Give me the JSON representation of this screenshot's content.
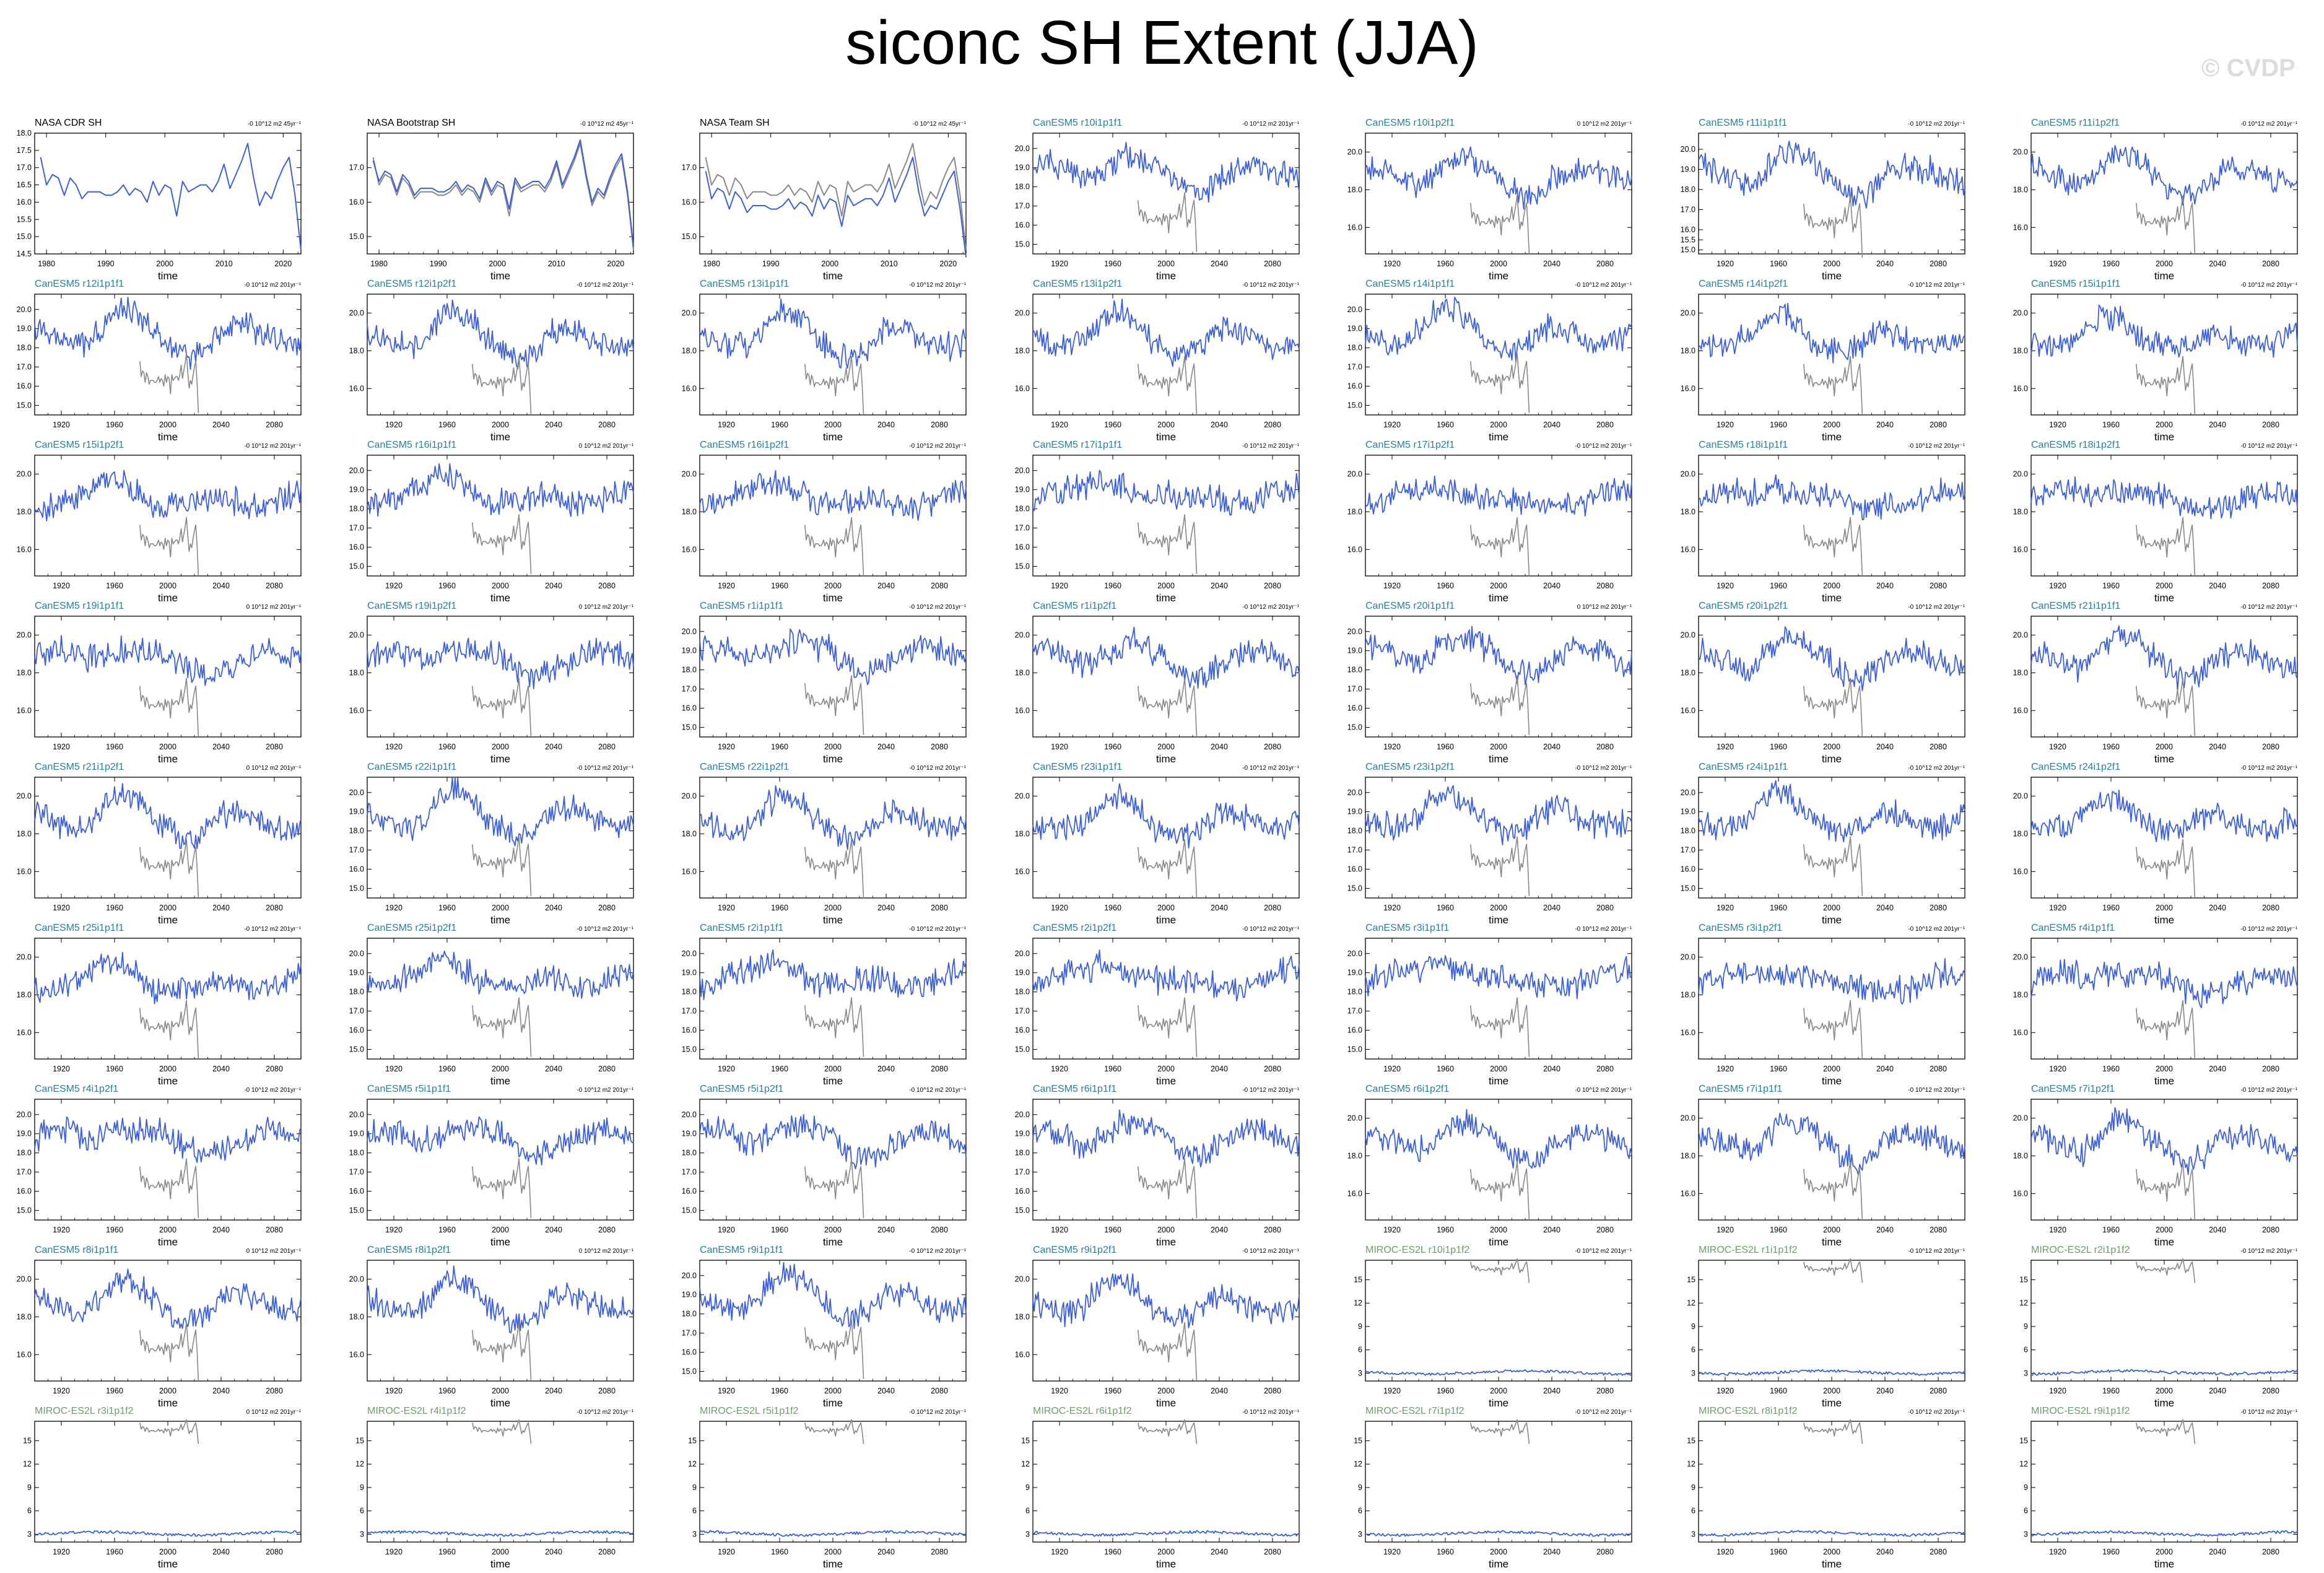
{
  "title": "siconc SH Extent (JJA)",
  "watermark": "© CVDP",
  "colors": {
    "obs_title": "#000000",
    "cesm_title": "#2a7f9a",
    "miroc_title": "#6e9c6e",
    "series_line": "#3a5fd9",
    "obs_overlay_line": "#888888",
    "axis": "#000000"
  },
  "chart_data": [
    {
      "title": "NASA CDR SH",
      "trend": "-0 10^12 m2 45yr⁻¹",
      "type": "line",
      "xlabel": "time",
      "xlim": [
        1978,
        2023
      ],
      "xticks": [
        1980,
        1990,
        2000,
        2010,
        2020
      ],
      "ylim": [
        14.5,
        18.0
      ],
      "yticks": [
        "18.0",
        "17.5",
        "17.0",
        "16.5",
        "16.0",
        "15.5",
        "15.0",
        "14.5"
      ],
      "series": [
        {
          "role": "observed",
          "x": [
            1979,
            1980,
            1981,
            1982,
            1983,
            1984,
            1985,
            1986,
            1987,
            1988,
            1989,
            1990,
            1991,
            1992,
            1993,
            1994,
            1995,
            1996,
            1997,
            1998,
            1999,
            2000,
            2001,
            2002,
            2003,
            2004,
            2005,
            2006,
            2007,
            2008,
            2009,
            2010,
            2011,
            2012,
            2013,
            2014,
            2015,
            2016,
            2017,
            2018,
            2019,
            2020,
            2021,
            2022,
            2023
          ],
          "y": [
            17.3,
            16.5,
            16.8,
            16.7,
            16.2,
            16.7,
            16.5,
            16.1,
            16.3,
            16.3,
            16.3,
            16.2,
            16.2,
            16.3,
            16.5,
            16.2,
            16.4,
            16.3,
            16.0,
            16.6,
            16.2,
            16.5,
            16.4,
            15.6,
            16.6,
            16.3,
            16.4,
            16.5,
            16.5,
            16.3,
            16.6,
            17.1,
            16.4,
            16.8,
            17.2,
            17.7,
            16.7,
            15.9,
            16.3,
            16.1,
            16.6,
            17.0,
            17.3,
            16.2,
            14.6
          ]
        }
      ]
    },
    {
      "title": "NASA Bootstrap SH",
      "trend": "-0 10^12 m2 45yr⁻¹",
      "type": "line",
      "xlabel": "time",
      "xlim": [
        1978,
        2023
      ],
      "xticks": [
        1980,
        1990,
        2000,
        2010,
        2020
      ],
      "ylim": [
        14.5,
        18.0
      ],
      "yticks": [
        "17.0",
        "16.0",
        "15.0"
      ],
      "series": [
        {
          "role": "observed",
          "x": [
            1979,
            1980,
            1981,
            1982,
            1983,
            1984,
            1985,
            1986,
            1987,
            1988,
            1989,
            1990,
            1991,
            1992,
            1993,
            1994,
            1995,
            1996,
            1997,
            1998,
            1999,
            2000,
            2001,
            2002,
            2003,
            2004,
            2005,
            2006,
            2007,
            2008,
            2009,
            2010,
            2011,
            2012,
            2013,
            2014,
            2015,
            2016,
            2017,
            2018,
            2019,
            2020,
            2021,
            2022,
            2023
          ],
          "y": [
            17.2,
            16.6,
            16.9,
            16.8,
            16.3,
            16.8,
            16.6,
            16.2,
            16.4,
            16.4,
            16.4,
            16.3,
            16.3,
            16.4,
            16.6,
            16.3,
            16.5,
            16.4,
            16.1,
            16.7,
            16.3,
            16.6,
            16.5,
            15.8,
            16.7,
            16.4,
            16.5,
            16.6,
            16.6,
            16.4,
            16.7,
            17.2,
            16.5,
            16.9,
            17.3,
            17.8,
            16.8,
            16.0,
            16.4,
            16.2,
            16.7,
            17.1,
            17.4,
            16.3,
            14.7
          ]
        },
        {
          "role": "reference",
          "x": [
            1979,
            1980,
            1981,
            1982,
            1983,
            1984,
            1985,
            1986,
            1987,
            1988,
            1989,
            1990,
            1991,
            1992,
            1993,
            1994,
            1995,
            1996,
            1997,
            1998,
            1999,
            2000,
            2001,
            2002,
            2003,
            2004,
            2005,
            2006,
            2007,
            2008,
            2009,
            2010,
            2011,
            2012,
            2013,
            2014,
            2015,
            2016,
            2017,
            2018,
            2019,
            2020,
            2021,
            2022,
            2023
          ],
          "y": [
            17.3,
            16.5,
            16.8,
            16.7,
            16.2,
            16.7,
            16.5,
            16.1,
            16.3,
            16.3,
            16.3,
            16.2,
            16.2,
            16.3,
            16.5,
            16.2,
            16.4,
            16.3,
            16.0,
            16.6,
            16.2,
            16.5,
            16.4,
            15.6,
            16.6,
            16.3,
            16.4,
            16.5,
            16.5,
            16.3,
            16.6,
            17.1,
            16.4,
            16.8,
            17.2,
            17.7,
            16.7,
            15.9,
            16.3,
            16.1,
            16.6,
            17.0,
            17.3,
            16.2,
            14.6
          ]
        }
      ]
    },
    {
      "title": "NASA Team SH",
      "trend": "-0 10^12 m2 45yr⁻¹",
      "type": "line",
      "xlabel": "time",
      "xlim": [
        1978,
        2023
      ],
      "xticks": [
        1980,
        1990,
        2000,
        2010,
        2020
      ],
      "ylim": [
        14.5,
        18.0
      ],
      "yticks": [
        "17.0",
        "16.0",
        "15.0"
      ],
      "series": [
        {
          "role": "observed",
          "x": [
            1979,
            1980,
            1981,
            1982,
            1983,
            1984,
            1985,
            1986,
            1987,
            1988,
            1989,
            1990,
            1991,
            1992,
            1993,
            1994,
            1995,
            1996,
            1997,
            1998,
            1999,
            2000,
            2001,
            2002,
            2003,
            2004,
            2005,
            2006,
            2007,
            2008,
            2009,
            2010,
            2011,
            2012,
            2013,
            2014,
            2015,
            2016,
            2017,
            2018,
            2019,
            2020,
            2021,
            2022,
            2023
          ],
          "y": [
            16.9,
            16.1,
            16.4,
            16.3,
            15.8,
            16.3,
            16.1,
            15.7,
            15.9,
            15.9,
            15.9,
            15.8,
            15.8,
            15.9,
            16.1,
            15.8,
            16.0,
            15.9,
            15.6,
            16.2,
            15.8,
            16.1,
            16.0,
            15.3,
            16.2,
            15.9,
            16.0,
            16.1,
            16.1,
            15.9,
            16.2,
            16.7,
            16.0,
            16.4,
            16.8,
            17.3,
            16.3,
            15.6,
            15.9,
            15.8,
            16.2,
            16.6,
            16.9,
            15.8,
            14.4
          ]
        },
        {
          "role": "reference",
          "x": [
            1979,
            1980,
            1981,
            1982,
            1983,
            1984,
            1985,
            1986,
            1987,
            1988,
            1989,
            1990,
            1991,
            1992,
            1993,
            1994,
            1995,
            1996,
            1997,
            1998,
            1999,
            2000,
            2001,
            2002,
            2003,
            2004,
            2005,
            2006,
            2007,
            2008,
            2009,
            2010,
            2011,
            2012,
            2013,
            2014,
            2015,
            2016,
            2017,
            2018,
            2019,
            2020,
            2021,
            2022,
            2023
          ],
          "y": [
            17.3,
            16.5,
            16.8,
            16.7,
            16.2,
            16.7,
            16.5,
            16.1,
            16.3,
            16.3,
            16.3,
            16.2,
            16.2,
            16.3,
            16.5,
            16.2,
            16.4,
            16.3,
            16.0,
            16.6,
            16.2,
            16.5,
            16.4,
            15.6,
            16.6,
            16.3,
            16.4,
            16.5,
            16.5,
            16.3,
            16.6,
            17.1,
            16.4,
            16.8,
            17.2,
            17.7,
            16.7,
            15.9,
            16.3,
            16.1,
            16.6,
            17.0,
            17.3,
            16.2,
            14.6
          ]
        }
      ]
    }
  ],
  "model_panels": {
    "xlim": [
      1900,
      2100
    ],
    "xticks": [
      1920,
      1960,
      2000,
      2040,
      2080
    ],
    "xlabel": "time",
    "overlay": {
      "x_start": 1979,
      "x_end": 2023,
      "y": [
        17.3,
        16.5,
        16.8,
        16.7,
        16.2,
        16.7,
        16.5,
        16.1,
        16.3,
        16.3,
        16.3,
        16.2,
        16.2,
        16.3,
        16.5,
        16.2,
        16.4,
        16.3,
        16.0,
        16.6,
        16.2,
        16.5,
        16.4,
        15.6,
        16.6,
        16.3,
        16.4,
        16.5,
        16.5,
        16.3,
        16.6,
        17.1,
        16.4,
        16.8,
        17.2,
        17.7,
        16.7,
        15.9,
        16.3,
        16.1,
        16.6,
        17.0,
        17.3,
        16.2,
        14.6
      ]
    },
    "cesm_yticks_a": [
      "20.0",
      "18.0",
      "16.0"
    ],
    "cesm_yticks_b": [
      "20.0",
      "19.0",
      "18.0",
      "17.0",
      "16.0",
      "15.0"
    ],
    "cesm_yticks_c": [
      "20.0",
      "19.0",
      "18.0",
      "17.0",
      "16.0",
      "15.5",
      "15.0"
    ],
    "miroc_yticks": [
      "15",
      "12",
      "9",
      "6",
      "3"
    ],
    "panels": [
      {
        "title": "CanESM5 r10i1p1f1",
        "trend": "-0 10^12 m2 201yr⁻¹",
        "family": "cesm",
        "yt": "b"
      },
      {
        "title": "CanESM5 r10i1p2f1",
        "trend": "0 10^12 m2 201yr⁻¹",
        "family": "cesm",
        "yt": "a"
      },
      {
        "title": "CanESM5 r11i1p1f1",
        "trend": "-0 10^12 m2 201yr⁻¹",
        "family": "cesm",
        "yt": "c"
      },
      {
        "title": "CanESM5 r11i1p2f1",
        "trend": "-0 10^12 m2 201yr⁻¹",
        "family": "cesm",
        "yt": "a"
      },
      {
        "title": "CanESM5 r12i1p1f1",
        "trend": "-0 10^12 m2 201yr⁻¹",
        "family": "cesm",
        "yt": "b"
      },
      {
        "title": "CanESM5 r12i1p2f1",
        "trend": "-0 10^12 m2 201yr⁻¹",
        "family": "cesm",
        "yt": "a"
      },
      {
        "title": "CanESM5 r13i1p1f1",
        "trend": "-0 10^12 m2 201yr⁻¹",
        "family": "cesm",
        "yt": "a"
      },
      {
        "title": "CanESM5 r13i1p2f1",
        "trend": "-0 10^12 m2 201yr⁻¹",
        "family": "cesm",
        "yt": "a"
      },
      {
        "title": "CanESM5 r14i1p1f1",
        "trend": "-0 10^12 m2 201yr⁻¹",
        "family": "cesm",
        "yt": "b"
      },
      {
        "title": "CanESM5 r14i1p2f1",
        "trend": "-0 10^12 m2 201yr⁻¹",
        "family": "cesm",
        "yt": "a"
      },
      {
        "title": "CanESM5 r15i1p1f1",
        "trend": "-0 10^12 m2 201yr⁻¹",
        "family": "cesm",
        "yt": "a"
      },
      {
        "title": "CanESM5 r15i1p2f1",
        "trend": "-0 10^12 m2 201yr⁻¹",
        "family": "cesm",
        "yt": "a"
      },
      {
        "title": "CanESM5 r16i1p1f1",
        "trend": "0 10^12 m2 201yr⁻¹",
        "family": "cesm",
        "yt": "b"
      },
      {
        "title": "CanESM5 r16i1p2f1",
        "trend": "-0 10^12 m2 201yr⁻¹",
        "family": "cesm",
        "yt": "a"
      },
      {
        "title": "CanESM5 r17i1p1f1",
        "trend": "-0 10^12 m2 201yr⁻¹",
        "family": "cesm",
        "yt": "b"
      },
      {
        "title": "CanESM5 r17i1p2f1",
        "trend": "-0 10^12 m2 201yr⁻¹",
        "family": "cesm",
        "yt": "a"
      },
      {
        "title": "CanESM5 r18i1p1f1",
        "trend": "-0 10^12 m2 201yr⁻¹",
        "family": "cesm",
        "yt": "a"
      },
      {
        "title": "CanESM5 r18i1p2f1",
        "trend": "-0 10^12 m2 201yr⁻¹",
        "family": "cesm",
        "yt": "a"
      },
      {
        "title": "CanESM5 r19i1p1f1",
        "trend": "0 10^12 m2 201yr⁻¹",
        "family": "cesm",
        "yt": "a"
      },
      {
        "title": "CanESM5 r19i1p2f1",
        "trend": "0 10^12 m2 201yr⁻¹",
        "family": "cesm",
        "yt": "a"
      },
      {
        "title": "CanESM5 r1i1p1f1",
        "trend": "-0 10^12 m2 201yr⁻¹",
        "family": "cesm",
        "yt": "b"
      },
      {
        "title": "CanESM5 r1i1p2f1",
        "trend": "-0 10^12 m2 201yr⁻¹",
        "family": "cesm",
        "yt": "a"
      },
      {
        "title": "CanESM5 r20i1p1f1",
        "trend": "0 10^12 m2 201yr⁻¹",
        "family": "cesm",
        "yt": "b"
      },
      {
        "title": "CanESM5 r20i1p2f1",
        "trend": "-0 10^12 m2 201yr⁻¹",
        "family": "cesm",
        "yt": "a"
      },
      {
        "title": "CanESM5 r21i1p1f1",
        "trend": "-0 10^12 m2 201yr⁻¹",
        "family": "cesm",
        "yt": "a"
      },
      {
        "title": "CanESM5 r21i1p2f1",
        "trend": "0 10^12 m2 201yr⁻¹",
        "family": "cesm",
        "yt": "a"
      },
      {
        "title": "CanESM5 r22i1p1f1",
        "trend": "-0 10^12 m2 201yr⁻¹",
        "family": "cesm",
        "yt": "b"
      },
      {
        "title": "CanESM5 r22i1p2f1",
        "trend": "-0 10^12 m2 201yr⁻¹",
        "family": "cesm",
        "yt": "a"
      },
      {
        "title": "CanESM5 r23i1p1f1",
        "trend": "-0 10^12 m2 201yr⁻¹",
        "family": "cesm",
        "yt": "a"
      },
      {
        "title": "CanESM5 r23i1p2f1",
        "trend": "-0 10^12 m2 201yr⁻¹",
        "family": "cesm",
        "yt": "b"
      },
      {
        "title": "CanESM5 r24i1p1f1",
        "trend": "-0 10^12 m2 201yr⁻¹",
        "family": "cesm",
        "yt": "b"
      },
      {
        "title": "CanESM5 r24i1p2f1",
        "trend": "-0 10^12 m2 201yr⁻¹",
        "family": "cesm",
        "yt": "a"
      },
      {
        "title": "CanESM5 r25i1p1f1",
        "trend": "-0 10^12 m2 201yr⁻¹",
        "family": "cesm",
        "yt": "a"
      },
      {
        "title": "CanESM5 r25i1p2f1",
        "trend": "-0 10^12 m2 201yr⁻¹",
        "family": "cesm",
        "yt": "b"
      },
      {
        "title": "CanESM5 r2i1p1f1",
        "trend": "-0 10^12 m2 201yr⁻¹",
        "family": "cesm",
        "yt": "b"
      },
      {
        "title": "CanESM5 r2i1p2f1",
        "trend": "-0 10^12 m2 201yr⁻¹",
        "family": "cesm",
        "yt": "b"
      },
      {
        "title": "CanESM5 r3i1p1f1",
        "trend": "-0 10^12 m2 201yr⁻¹",
        "family": "cesm",
        "yt": "b"
      },
      {
        "title": "CanESM5 r3i1p2f1",
        "trend": "-0 10^12 m2 201yr⁻¹",
        "family": "cesm",
        "yt": "a"
      },
      {
        "title": "CanESM5 r4i1p1f1",
        "trend": "-0 10^12 m2 201yr⁻¹",
        "family": "cesm",
        "yt": "a"
      },
      {
        "title": "CanESM5 r4i1p2f1",
        "trend": "-0 10^12 m2 201yr⁻¹",
        "family": "cesm",
        "yt": "b"
      },
      {
        "title": "CanESM5 r5i1p1f1",
        "trend": "-0 10^12 m2 201yr⁻¹",
        "family": "cesm",
        "yt": "b"
      },
      {
        "title": "CanESM5 r5i1p2f1",
        "trend": "-0 10^12 m2 201yr⁻¹",
        "family": "cesm",
        "yt": "b"
      },
      {
        "title": "CanESM5 r6i1p1f1",
        "trend": "-0 10^12 m2 201yr⁻¹",
        "family": "cesm",
        "yt": "b"
      },
      {
        "title": "CanESM5 r6i1p2f1",
        "trend": "-0 10^12 m2 201yr⁻¹",
        "family": "cesm",
        "yt": "a"
      },
      {
        "title": "CanESM5 r7i1p1f1",
        "trend": "-0 10^12 m2 201yr⁻¹",
        "family": "cesm",
        "yt": "a"
      },
      {
        "title": "CanESM5 r7i1p2f1",
        "trend": "-0 10^12 m2 201yr⁻¹",
        "family": "cesm",
        "yt": "a"
      },
      {
        "title": "CanESM5 r8i1p1f1",
        "trend": "0 10^12 m2 201yr⁻¹",
        "family": "cesm",
        "yt": "a"
      },
      {
        "title": "CanESM5 r8i1p2f1",
        "trend": "0 10^12 m2 201yr⁻¹",
        "family": "cesm",
        "yt": "a"
      },
      {
        "title": "CanESM5 r9i1p1f1",
        "trend": "-0 10^12 m2 201yr⁻¹",
        "family": "cesm",
        "yt": "b"
      },
      {
        "title": "CanESM5 r9i1p2f1",
        "trend": "-0 10^12 m2 201yr⁻¹",
        "family": "cesm",
        "yt": "a"
      },
      {
        "title": "MIROC-ES2L r10i1p1f2",
        "trend": "-0 10^12 m2 201yr⁻¹",
        "family": "miroc"
      },
      {
        "title": "MIROC-ES2L r1i1p1f2",
        "trend": "-0 10^12 m2 201yr⁻¹",
        "family": "miroc"
      },
      {
        "title": "MIROC-ES2L r2i1p1f2",
        "trend": "-0 10^12 m2 201yr⁻¹",
        "family": "miroc"
      },
      {
        "title": "MIROC-ES2L r3i1p1f2",
        "trend": "0 10^12 m2 201yr⁻¹",
        "family": "miroc"
      },
      {
        "title": "MIROC-ES2L r4i1p1f2",
        "trend": "-0 10^12 m2 201yr⁻¹",
        "family": "miroc"
      },
      {
        "title": "MIROC-ES2L r5i1p1f2",
        "trend": "-0 10^12 m2 201yr⁻¹",
        "family": "miroc"
      },
      {
        "title": "MIROC-ES2L r6i1p1f2",
        "trend": "-0 10^12 m2 201yr⁻¹",
        "family": "miroc"
      },
      {
        "title": "MIROC-ES2L r7i1p1f2",
        "trend": "-0 10^12 m2 201yr⁻¹",
        "family": "miroc"
      },
      {
        "title": "MIROC-ES2L r8i1p1f2",
        "trend": "-0 10^12 m2 201yr⁻¹",
        "family": "miroc"
      },
      {
        "title": "MIROC-ES2L r9i1p1f2",
        "trend": "-0 10^12 m2 201yr⁻¹",
        "family": "miroc"
      }
    ]
  }
}
